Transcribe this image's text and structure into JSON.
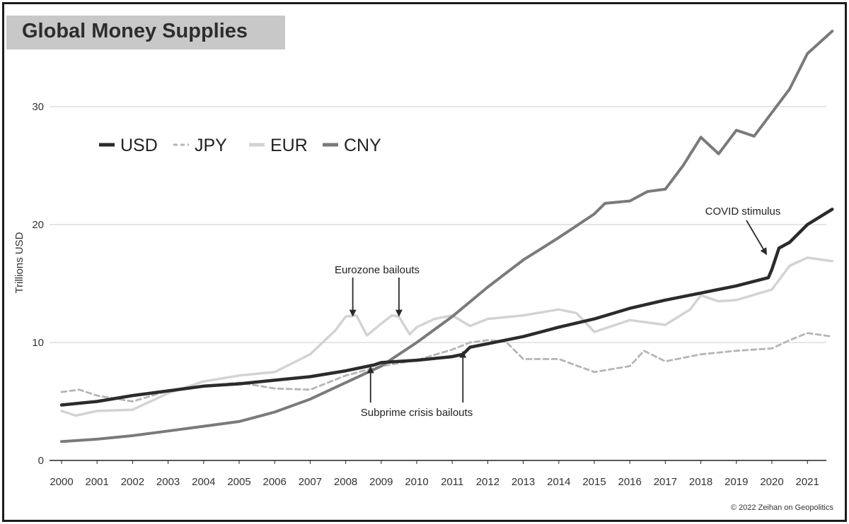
{
  "chart_data": {
    "type": "line",
    "title": "Global Money Supplies",
    "ylabel": "Trillions USD",
    "xlabel": "",
    "xlim": [
      2000,
      2021.7
    ],
    "ylim": [
      0,
      35
    ],
    "yticks": [
      0,
      10,
      20,
      30
    ],
    "xtick_labels": [
      "2000",
      "2001",
      "2002",
      "2003",
      "2004",
      "2005",
      "2006",
      "2007",
      "2008",
      "2009",
      "2010",
      "2011",
      "2012",
      "2013",
      "2014",
      "2015",
      "2016",
      "2017",
      "2018",
      "2019",
      "2020",
      "2021"
    ],
    "grid": true,
    "legend_position": "top-left",
    "series": [
      {
        "name": "USD",
        "color": "#2b2b2b",
        "style": "solid",
        "x": [
          2000,
          2001,
          2002,
          2003,
          2004,
          2005,
          2006,
          2007,
          2008,
          2008.8,
          2009,
          2010,
          2011,
          2011.3,
          2011.5,
          2012,
          2013,
          2014,
          2015,
          2016,
          2017,
          2018,
          2019,
          2019.9,
          2020,
          2020.2,
          2020.5,
          2021,
          2021.7
        ],
        "y": [
          4.7,
          5.0,
          5.5,
          5.9,
          6.3,
          6.5,
          6.8,
          7.1,
          7.6,
          8.1,
          8.3,
          8.5,
          8.8,
          9.0,
          9.6,
          9.9,
          10.5,
          11.3,
          12.0,
          12.9,
          13.6,
          14.2,
          14.8,
          15.5,
          16.2,
          18.0,
          18.5,
          20.0,
          21.3
        ]
      },
      {
        "name": "JPY",
        "color": "#b5b5b5",
        "style": "dashed",
        "x": [
          2000,
          2000.5,
          2001,
          2002,
          2003,
          2004,
          2005,
          2006,
          2007,
          2008,
          2009,
          2010,
          2011,
          2011.5,
          2012,
          2012.5,
          2012.8,
          2013,
          2014,
          2015,
          2016,
          2016.4,
          2017,
          2018,
          2019,
          2020,
          2020.5,
          2021,
          2021.7
        ],
        "y": [
          5.8,
          6.0,
          5.5,
          5.0,
          5.9,
          6.3,
          6.6,
          6.1,
          6.0,
          7.2,
          8.0,
          8.5,
          9.4,
          10.0,
          10.2,
          10.1,
          9.2,
          8.6,
          8.6,
          7.5,
          8.0,
          9.3,
          8.4,
          9.0,
          9.3,
          9.5,
          10.2,
          10.8,
          10.5
        ]
      },
      {
        "name": "EUR",
        "color": "#d3d3d3",
        "style": "solid",
        "x": [
          2000,
          2000.4,
          2001,
          2002,
          2003,
          2004,
          2005,
          2006,
          2007,
          2007.7,
          2008,
          2008.3,
          2008.6,
          2009,
          2009.3,
          2009.5,
          2009.8,
          2010,
          2010.5,
          2011,
          2011.5,
          2012,
          2013,
          2014,
          2014.5,
          2015,
          2016,
          2017,
          2017.7,
          2018,
          2018.5,
          2019,
          2020,
          2020.5,
          2021,
          2021.7
        ],
        "y": [
          4.2,
          3.8,
          4.2,
          4.3,
          5.7,
          6.7,
          7.2,
          7.5,
          9.0,
          11.0,
          12.2,
          12.3,
          10.6,
          11.6,
          12.3,
          12.2,
          10.7,
          11.3,
          12.0,
          12.3,
          11.4,
          12.0,
          12.3,
          12.8,
          12.5,
          10.9,
          11.9,
          11.5,
          12.8,
          14.0,
          13.5,
          13.6,
          14.5,
          16.5,
          17.2,
          16.9
        ]
      },
      {
        "name": "CNY",
        "color": "#7a7a7a",
        "style": "solid",
        "x": [
          2000,
          2001,
          2002,
          2003,
          2004,
          2005,
          2006,
          2007,
          2008,
          2009,
          2010,
          2011,
          2012,
          2013,
          2014,
          2015,
          2015.3,
          2016,
          2016.5,
          2017,
          2017.5,
          2018,
          2018.5,
          2019,
          2019.5,
          2020,
          2020.5,
          2021,
          2021.7
        ],
        "y": [
          1.6,
          1.8,
          2.1,
          2.5,
          2.9,
          3.3,
          4.1,
          5.2,
          6.6,
          8.0,
          10.0,
          12.2,
          14.7,
          17.0,
          18.9,
          20.9,
          21.8,
          22.0,
          22.8,
          23.0,
          25.0,
          27.4,
          26.0,
          28.0,
          27.5,
          29.5,
          31.5,
          34.5,
          36.4
        ]
      }
    ],
    "annotations": [
      {
        "text": "Eurozone bailouts",
        "arrows": [
          {
            "x": 2008.2,
            "y": 12.3
          },
          {
            "x": 2009.5,
            "y": 12.3
          }
        ]
      },
      {
        "text": "Subprime crisis bailouts",
        "arrows": [
          {
            "x": 2008.7,
            "y": 8.0
          },
          {
            "x": 2011.3,
            "y": 9.3
          }
        ]
      },
      {
        "text": "COVID stimulus",
        "arrows": [
          {
            "x": 2019.9,
            "y": 17.5
          }
        ]
      }
    ]
  },
  "credit": "© 2022 Zeihan on Geopolitics"
}
